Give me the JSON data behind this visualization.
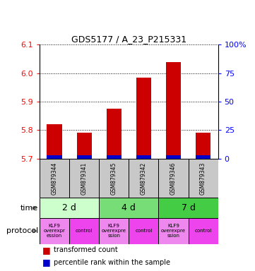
{
  "title": "GDS5177 / A_23_P215331",
  "samples": [
    "GSM879344",
    "GSM879341",
    "GSM879345",
    "GSM879342",
    "GSM879346",
    "GSM879343"
  ],
  "transformed_counts": [
    5.82,
    5.79,
    5.875,
    5.985,
    6.04,
    5.79
  ],
  "percentile_ranks": [
    5,
    6,
    7,
    6,
    8,
    5
  ],
  "y_min": 5.7,
  "y_max": 6.1,
  "y_ticks": [
    5.7,
    5.8,
    5.9,
    6.0,
    6.1
  ],
  "y2_ticks": [
    0,
    25,
    50,
    75,
    100
  ],
  "y2_labels": [
    "0",
    "25",
    "50",
    "75",
    "100%"
  ],
  "time_groups": [
    [
      0,
      2,
      "2 d"
    ],
    [
      2,
      4,
      "4 d"
    ],
    [
      4,
      6,
      "7 d"
    ]
  ],
  "time_colors": [
    "#ccffcc",
    "#77dd77",
    "#44cc44"
  ],
  "protocol_items": [
    [
      0,
      1,
      "KLF9\noverexpr\nession",
      "#ee88ee"
    ],
    [
      1,
      2,
      "control",
      "#ee44ee"
    ],
    [
      2,
      3,
      "KLF9\noverexpre\nssion",
      "#ee88ee"
    ],
    [
      3,
      4,
      "control",
      "#ee44ee"
    ],
    [
      4,
      5,
      "KLF9\noverexpre\nssion",
      "#ee88ee"
    ],
    [
      5,
      6,
      "control",
      "#ee44ee"
    ]
  ],
  "bar_color_red": "#cc0000",
  "bar_color_blue": "#0000cc",
  "sample_bg": "#c8c8c8"
}
